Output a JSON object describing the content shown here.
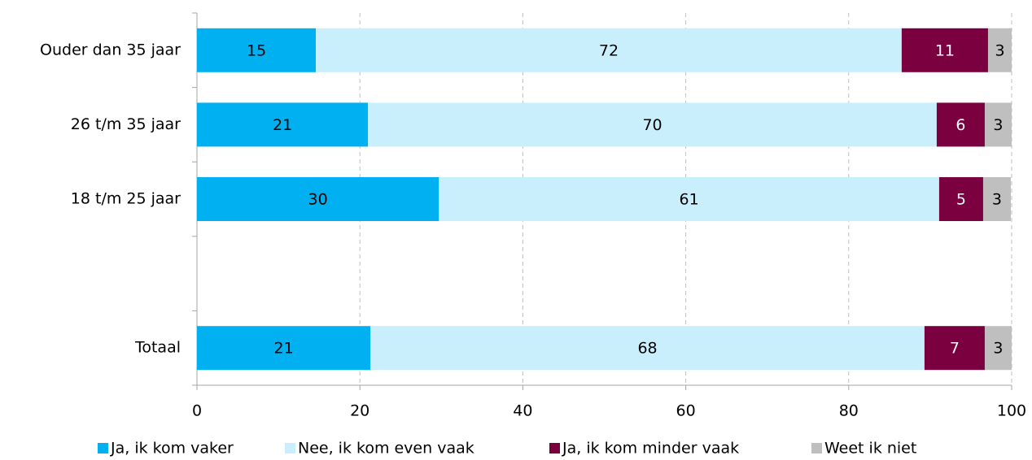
{
  "chart_data": {
    "type": "stacked-barh",
    "categories": [
      "Ouder dan 35 jaar",
      "26 t/m 35 jaar",
      "18 t/m 25 jaar",
      null,
      "Totaal"
    ],
    "series": [
      {
        "name": "Ja, ik kom vaker",
        "color": "#00b0f0",
        "values": [
          14.6,
          21.0,
          29.7,
          null,
          21.3
        ],
        "value_labels": [
          "15",
          "21",
          "30",
          null,
          "21"
        ]
      },
      {
        "name": "Nee, ik kom even vaak",
        "color": "#c9effd",
        "values": [
          71.9,
          69.8,
          61.4,
          null,
          68.0
        ],
        "value_labels": [
          "72",
          "70",
          "61",
          null,
          "68"
        ]
      },
      {
        "name": "Ja, ik kom minder vaak",
        "color": "#7b0040",
        "values": [
          10.6,
          5.9,
          5.4,
          null,
          7.4
        ],
        "value_labels": [
          "11",
          "6",
          "5",
          null,
          "7"
        ]
      },
      {
        "name": "Weet ik niet",
        "color": "#bfbfbf",
        "values": [
          2.9,
          3.3,
          3.4,
          null,
          3.3
        ],
        "value_labels": [
          "3",
          "3",
          "3",
          null,
          "3"
        ]
      }
    ],
    "xlim": [
      0,
      100
    ],
    "xticks": [
      0,
      20,
      40,
      60,
      80,
      100
    ],
    "grid": true,
    "legend": "bottom"
  }
}
